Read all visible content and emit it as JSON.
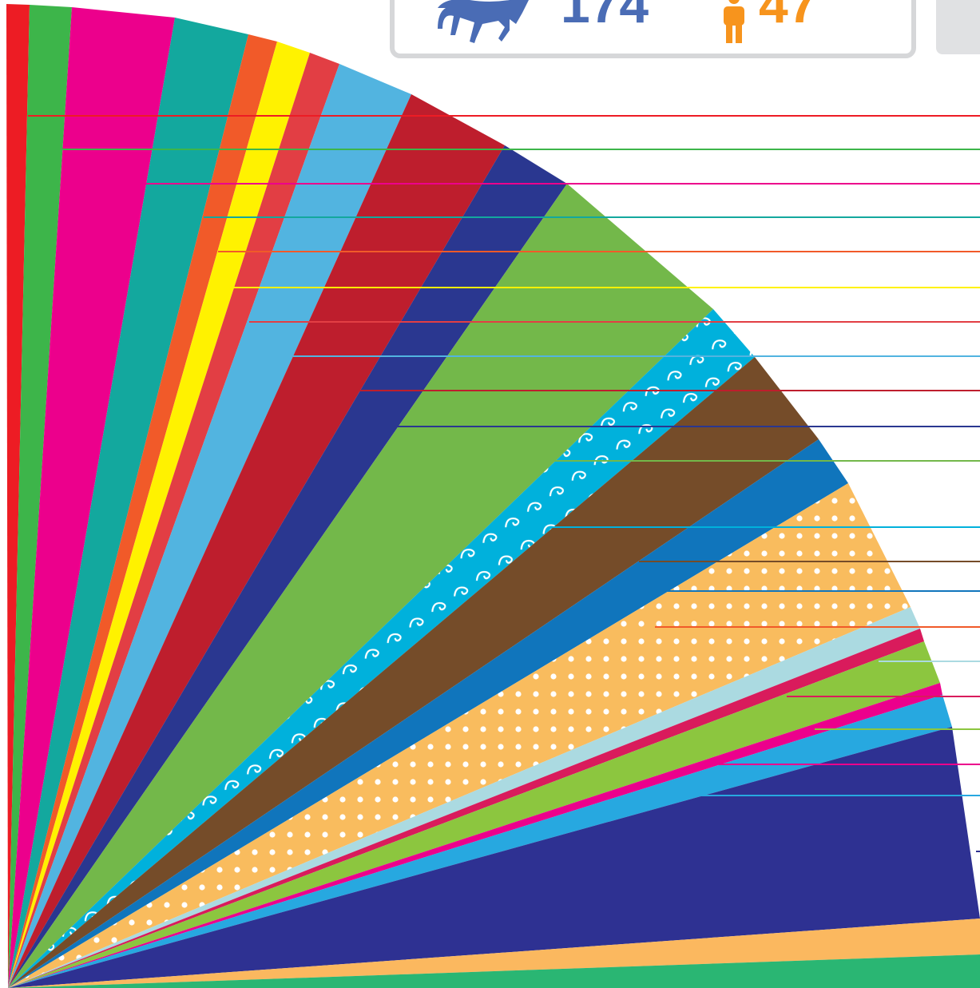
{
  "header": {
    "horse_count": "174",
    "person_count": "47"
  }
}
